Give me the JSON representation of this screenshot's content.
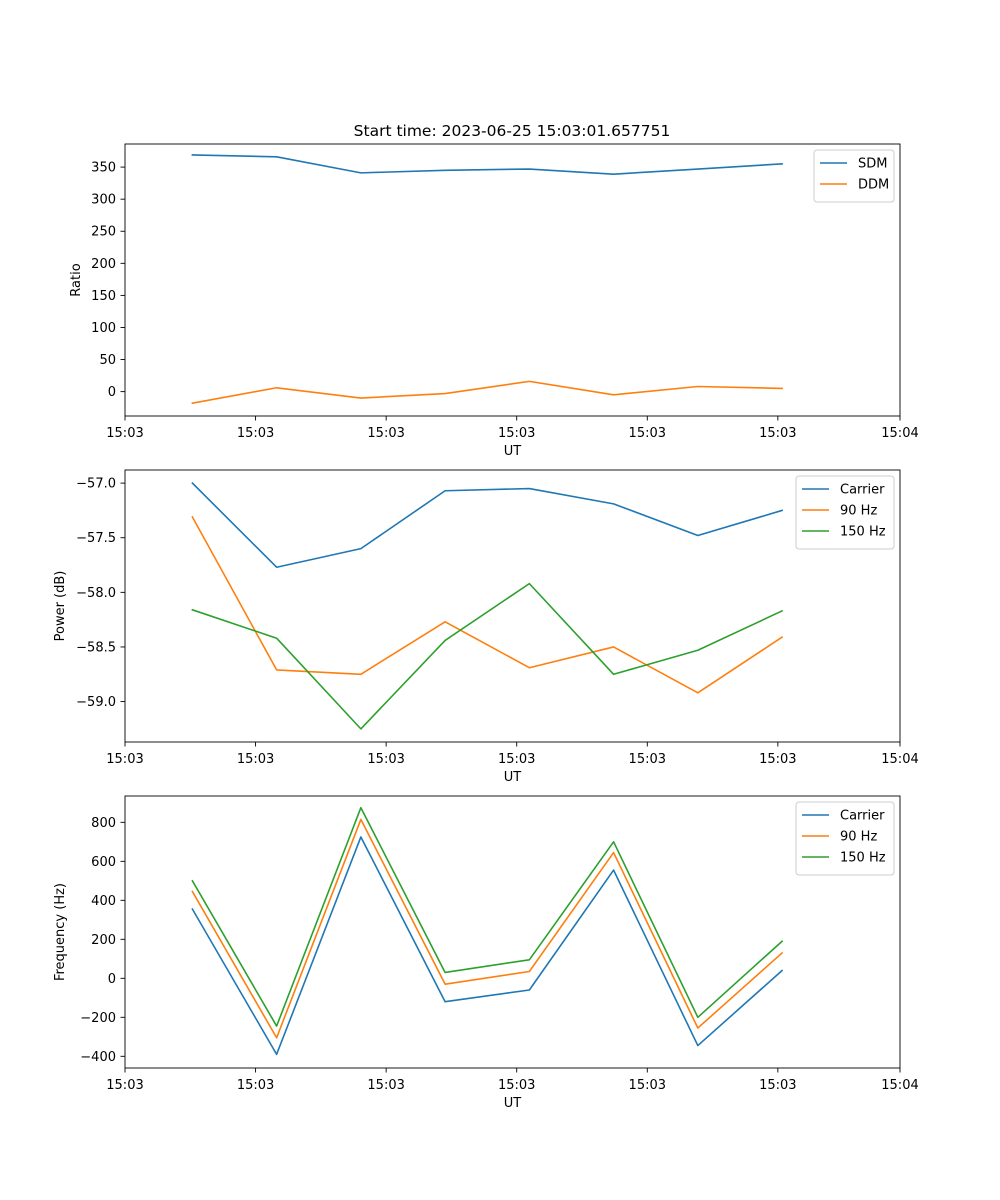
{
  "figure": {
    "title": "Start time: 2023-06-25 15:03:01.657751"
  },
  "colors": {
    "blue": "#1f77b4",
    "orange": "#ff7f0e",
    "green": "#2ca02c"
  },
  "chart_data": [
    {
      "type": "line",
      "title": "Start time: 2023-06-25 15:03:01.657751",
      "xlabel": "UT",
      "ylabel": "Ratio",
      "x": [
        1,
        2,
        3,
        4,
        5,
        6,
        7,
        8
      ],
      "xlim": [
        0.2,
        9.4
      ],
      "xticks": [
        0.2,
        1.75,
        3.3,
        4.85,
        6.4,
        7.95,
        9.4
      ],
      "xtick_labels": [
        "15:03",
        "15:03",
        "15:03",
        "15:03",
        "15:03",
        "15:03",
        "15:04"
      ],
      "ylim": [
        -38,
        386
      ],
      "yticks": [
        0,
        50,
        100,
        150,
        200,
        250,
        300,
        350
      ],
      "ytick_labels": [
        "0",
        "50",
        "100",
        "150",
        "200",
        "250",
        "300",
        "350"
      ],
      "legend_position": "upper right",
      "grid": false,
      "series": [
        {
          "name": "SDM",
          "color": "#1f77b4",
          "values": [
            369,
            366,
            341,
            345,
            347,
            339,
            347,
            355
          ]
        },
        {
          "name": "DDM",
          "color": "#ff7f0e",
          "values": [
            -18,
            6,
            -10,
            -3,
            16,
            -5,
            8,
            5
          ]
        }
      ]
    },
    {
      "type": "line",
      "title": "",
      "xlabel": "UT",
      "ylabel": "Power (dB)",
      "x": [
        1,
        2,
        3,
        4,
        5,
        6,
        7,
        8
      ],
      "xlim": [
        0.2,
        9.4
      ],
      "xticks": [
        0.2,
        1.75,
        3.3,
        4.85,
        6.4,
        7.95,
        9.4
      ],
      "xtick_labels": [
        "15:03",
        "15:03",
        "15:03",
        "15:03",
        "15:03",
        "15:03",
        "15:04"
      ],
      "ylim": [
        -59.37,
        -56.88
      ],
      "yticks": [
        -59.0,
        -58.5,
        -58.0,
        -57.5,
        -57.0
      ],
      "ytick_labels": [
        "−59.0",
        "−58.5",
        "−58.0",
        "−57.5",
        "−57.0"
      ],
      "legend_position": "upper right",
      "grid": false,
      "series": [
        {
          "name": "Carrier",
          "color": "#1f77b4",
          "values": [
            -57.0,
            -57.77,
            -57.6,
            -57.07,
            -57.05,
            -57.19,
            -57.48,
            -57.25
          ]
        },
        {
          "name": "90 Hz",
          "color": "#ff7f0e",
          "values": [
            -57.31,
            -58.71,
            -58.75,
            -58.27,
            -58.69,
            -58.5,
            -58.92,
            -58.41
          ]
        },
        {
          "name": "150 Hz",
          "color": "#2ca02c",
          "values": [
            -58.16,
            -58.42,
            -59.25,
            -58.44,
            -57.92,
            -58.75,
            -58.53,
            -58.17
          ]
        }
      ]
    },
    {
      "type": "line",
      "title": "",
      "xlabel": "UT",
      "ylabel": "Frequency (Hz)",
      "x": [
        1,
        2,
        3,
        4,
        5,
        6,
        7,
        8
      ],
      "xlim": [
        0.2,
        9.4
      ],
      "xticks": [
        0.2,
        1.75,
        3.3,
        4.85,
        6.4,
        7.95,
        9.4
      ],
      "xtick_labels": [
        "15:03",
        "15:03",
        "15:03",
        "15:03",
        "15:03",
        "15:03",
        "15:04"
      ],
      "ylim": [
        -460,
        935
      ],
      "yticks": [
        -400,
        -200,
        0,
        200,
        400,
        600,
        800
      ],
      "ytick_labels": [
        "−400",
        "−200",
        "0",
        "200",
        "400",
        "600",
        "800"
      ],
      "legend_position": "upper right",
      "grid": false,
      "series": [
        {
          "name": "Carrier",
          "color": "#1f77b4",
          "values": [
            355,
            -390,
            725,
            -120,
            -60,
            555,
            -345,
            40
          ]
        },
        {
          "name": "90 Hz",
          "color": "#ff7f0e",
          "values": [
            445,
            -305,
            815,
            -30,
            35,
            645,
            -255,
            130
          ]
        },
        {
          "name": "150 Hz",
          "color": "#2ca02c",
          "values": [
            500,
            -245,
            875,
            30,
            95,
            700,
            -200,
            190
          ]
        }
      ]
    }
  ]
}
